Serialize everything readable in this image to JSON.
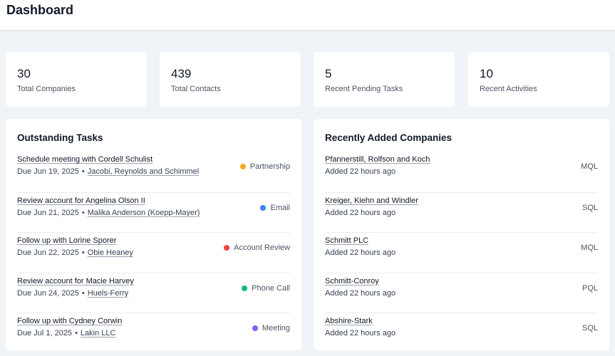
{
  "header": {
    "title": "Dashboard"
  },
  "stats": [
    {
      "value": "30",
      "label": "Total Companies"
    },
    {
      "value": "439",
      "label": "Total Contacts"
    },
    {
      "value": "5",
      "label": "Recent Pending Tasks"
    },
    {
      "value": "10",
      "label": "Recent Activities"
    }
  ],
  "tasks": {
    "title": "Outstanding Tasks",
    "items": [
      {
        "title": "Schedule meeting with Cordell Schulist",
        "due": "Due Jun 19, 2025",
        "separator": "•",
        "company": "Jacobi, Reynolds and Schimmel",
        "type": "Partnership",
        "color": "#f5a623"
      },
      {
        "title": "Review account for Angelina Olson II",
        "due": "Due Jun 21, 2025",
        "separator": "•",
        "company": "Malika Anderson (Koepp-Mayer)",
        "type": "Email",
        "color": "#3b82f6"
      },
      {
        "title": "Follow up with Lorine Sporer",
        "due": "Due Jun 22, 2025",
        "separator": "•",
        "company": "Obie Heaney",
        "type": "Account Review",
        "color": "#ef4444"
      },
      {
        "title": "Review account for Macie Harvey",
        "due": "Due Jun 24, 2025",
        "separator": "•",
        "company": "Huels-Ferry",
        "type": "Phone Call",
        "color": "#10b981"
      },
      {
        "title": "Follow up with Cydney Corwin",
        "due": "Due Jul 1, 2025",
        "separator": "•",
        "company": "Lakin LLC",
        "type": "Meeting",
        "color": "#8b5cf6"
      }
    ]
  },
  "companies": {
    "title": "Recently Added Companies",
    "items": [
      {
        "name": "Pfannerstill, Rolfson and Koch",
        "added": "Added 22 hours ago",
        "stage": "MQL"
      },
      {
        "name": "Kreiger, Kiehn and Windler",
        "added": "Added 22 hours ago",
        "stage": "SQL"
      },
      {
        "name": "Schmitt PLC",
        "added": "Added 22 hours ago",
        "stage": "MQL"
      },
      {
        "name": "Schmitt-Conroy",
        "added": "Added 22 hours ago",
        "stage": "PQL"
      },
      {
        "name": "Abshire-Stark",
        "added": "Added 22 hours ago",
        "stage": "SQL"
      }
    ]
  }
}
